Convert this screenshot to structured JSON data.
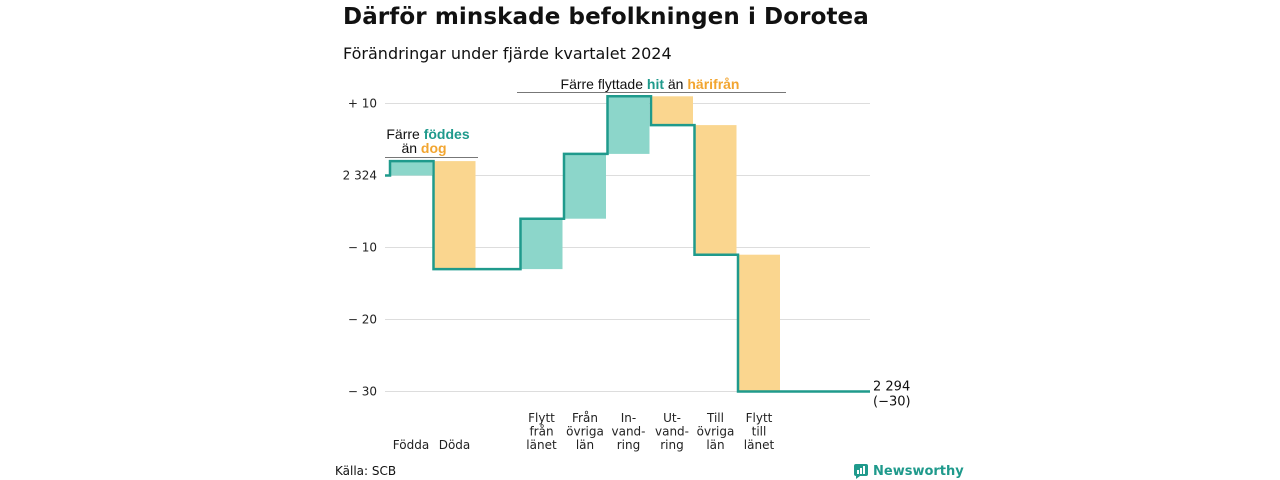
{
  "title": "Därför minskade befolkningen i Dorotea",
  "subtitle": "Förändringar under fjärde kvartalet 2024",
  "source": "Källa: SCB",
  "brand": "Newsworthy",
  "colors": {
    "increase": "#8cd6ca",
    "decrease": "#fad68f",
    "line": "#1f9a8c",
    "accent_green": "#1f9a8c",
    "accent_orange": "#f2a530",
    "grid": "#dddddd"
  },
  "chart_data": {
    "type": "waterfall",
    "start_value": 2324,
    "end_value": 2294,
    "end_label": "2 294",
    "end_change_label": "(−30)",
    "yticks": [
      {
        "value": 10,
        "label": "+ 10"
      },
      {
        "value": 0,
        "label": "2 324"
      },
      {
        "value": -10,
        "label": "− 10"
      },
      {
        "value": -20,
        "label": "− 20"
      },
      {
        "value": -30,
        "label": "− 30"
      }
    ],
    "ylim": [
      -31,
      12
    ],
    "categories": [
      {
        "label": [
          "Födda"
        ],
        "value": 2
      },
      {
        "label": [
          "Döda"
        ],
        "value": -15
      },
      {
        "label": [
          ""
        ],
        "value": 0
      },
      {
        "label": [
          "Flytt",
          "från",
          "länet"
        ],
        "value": 7
      },
      {
        "label": [
          "Från",
          "övriga",
          "län"
        ],
        "value": 9
      },
      {
        "label": [
          "In-",
          "vand-",
          "ring"
        ],
        "value": 8
      },
      {
        "label": [
          "Ut-",
          "vand-",
          "ring"
        ],
        "value": -4
      },
      {
        "label": [
          "Till",
          "övriga",
          "län"
        ],
        "value": -18
      },
      {
        "label": [
          "Flytt",
          "till",
          "länet"
        ],
        "value": -19
      }
    ],
    "annotations": [
      {
        "parts": [
          "Färre ",
          "föddes"
        ],
        "line2": [
          "än ",
          "dog"
        ]
      },
      {
        "parts": [
          "Färre flyttade ",
          "hit",
          " än ",
          "härifrån"
        ]
      }
    ]
  }
}
